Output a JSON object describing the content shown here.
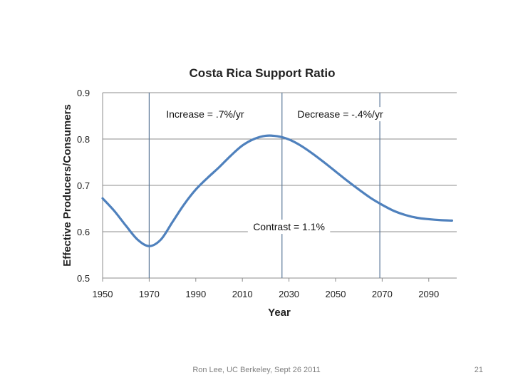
{
  "chart_data": {
    "type": "line",
    "title": "Costa Rica Support Ratio",
    "xlabel": "Year",
    "ylabel": "Effective Producers/Consumers",
    "xlim": [
      1950,
      2102
    ],
    "ylim": [
      0.5,
      0.9
    ],
    "x_ticks": [
      1950,
      1970,
      1990,
      2010,
      2030,
      2050,
      2070,
      2090
    ],
    "x_tick_labels": [
      "1950",
      "1970",
      "1990",
      "2010",
      "2030",
      "2050",
      "2070",
      "2090"
    ],
    "y_ticks": [
      0.5,
      0.6,
      0.7,
      0.8,
      0.9
    ],
    "y_tick_labels": [
      "0.5",
      "0.6",
      "0.7",
      "0.8",
      "0.9"
    ],
    "grid": "horizontal",
    "series": [
      {
        "name": "Support Ratio",
        "color": "#4f81bd",
        "x": [
          1950,
          1955,
          1960,
          1965,
          1970,
          1975,
          1980,
          1985,
          1990,
          1995,
          2000,
          2005,
          2010,
          2015,
          2020,
          2025,
          2030,
          2035,
          2040,
          2045,
          2050,
          2055,
          2060,
          2065,
          2070,
          2075,
          2080,
          2085,
          2090,
          2095,
          2100
        ],
        "y": [
          0.672,
          0.645,
          0.613,
          0.583,
          0.569,
          0.583,
          0.621,
          0.659,
          0.691,
          0.716,
          0.739,
          0.764,
          0.786,
          0.8,
          0.807,
          0.806,
          0.799,
          0.786,
          0.769,
          0.75,
          0.73,
          0.71,
          0.691,
          0.673,
          0.658,
          0.645,
          0.636,
          0.63,
          0.627,
          0.625,
          0.624
        ]
      }
    ],
    "vertical_lines": [
      1970,
      2027,
      2069
    ],
    "annotations": [
      {
        "text": "Increase = .7%/yr",
        "x": 1994,
        "y": 0.846
      },
      {
        "text": "Decrease = -.4%/yr",
        "x": 2052,
        "y": 0.846
      },
      {
        "text": "Contrast = 1.1%",
        "x": 2030,
        "y": 0.603
      }
    ]
  },
  "footer": {
    "credit": "Ron Lee, UC Berkeley, Sept 26 2011",
    "page_number": "21"
  }
}
